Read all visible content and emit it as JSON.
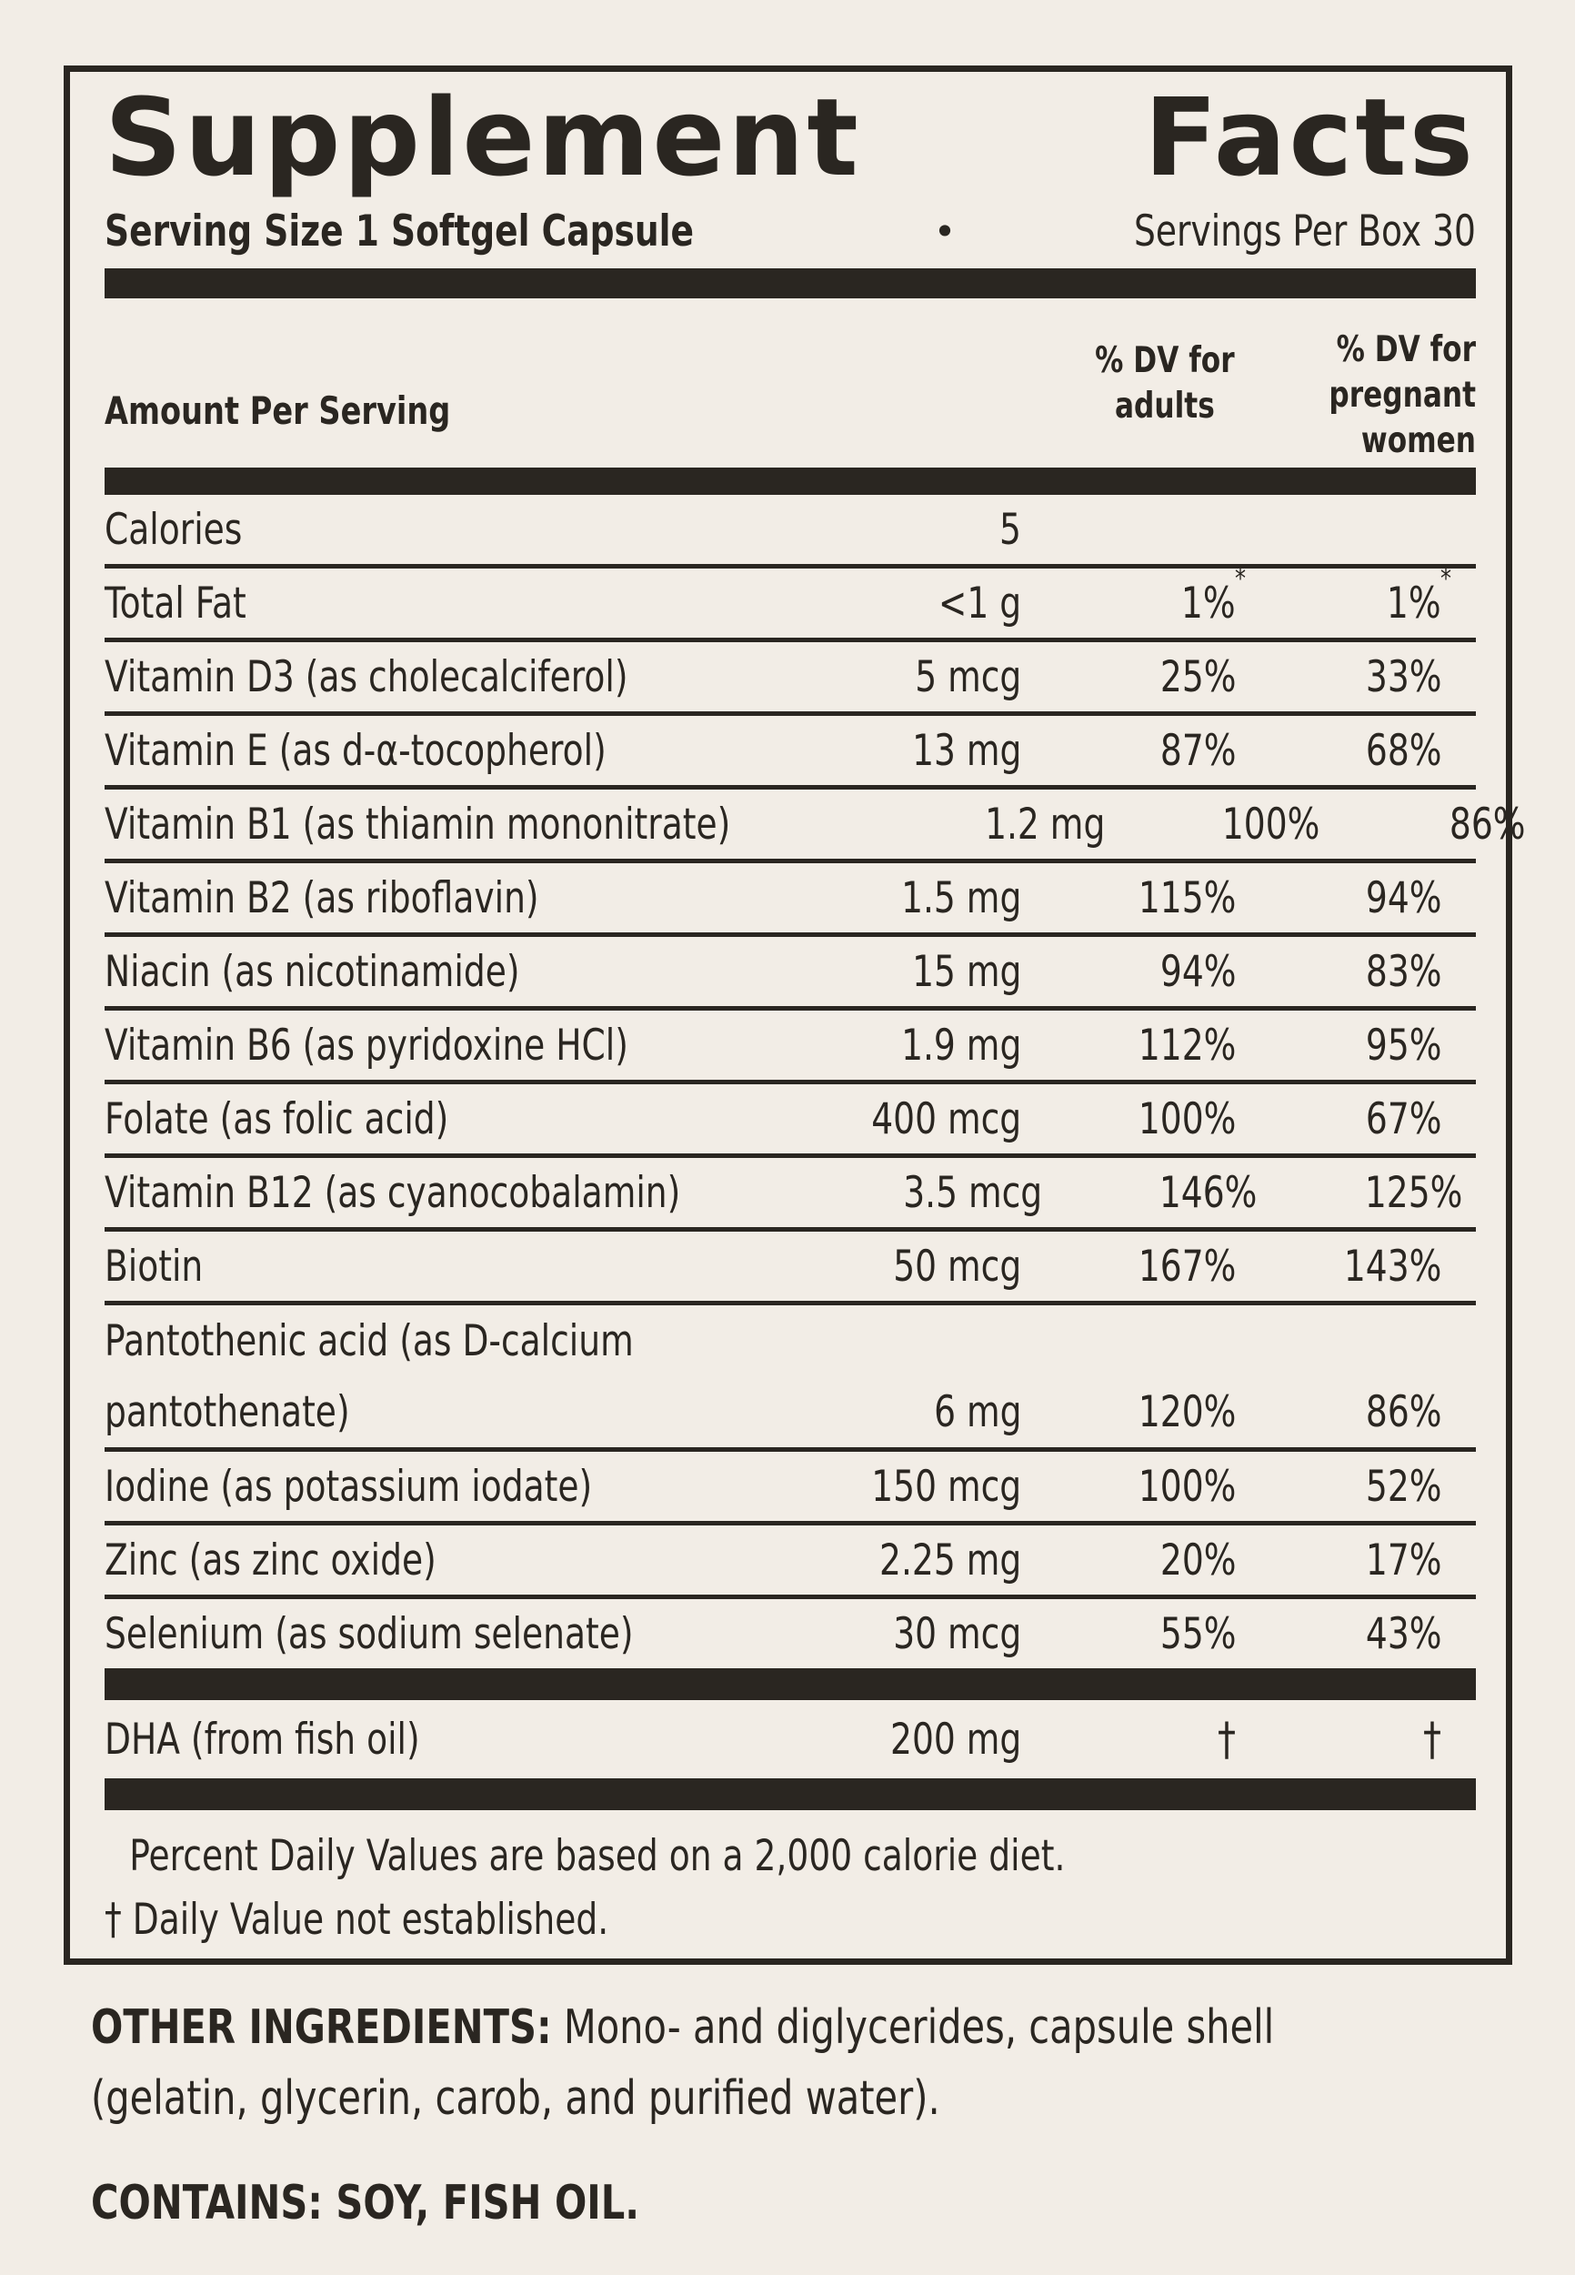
{
  "colors": {
    "background": "#f2ede6",
    "ink": "#2a2621"
  },
  "panel": {
    "title": "Supplement Facts",
    "serving_size": "Serving Size 1 Softgel Capsule",
    "bullet": "•",
    "servings_per_box": "Servings Per Box 30",
    "columns": {
      "amount": "Amount Per Serving",
      "dv_adults": [
        "% DV for",
        "adults"
      ],
      "dv_pregnant": [
        "% DV for",
        "pregnant",
        "women"
      ]
    },
    "rows": [
      {
        "name": "Calories",
        "amount": "5",
        "dv_adults": "",
        "dv_pregnant": ""
      },
      {
        "name": "Total Fat",
        "amount": "<1 g",
        "dv_adults": "1%",
        "dv_pregnant": "1%",
        "dv_mark": "*"
      },
      {
        "name": "Vitamin D3 (as cholecalciferol)",
        "amount": "5 mcg",
        "dv_adults": "25%",
        "dv_pregnant": "33%"
      },
      {
        "name": "Vitamin E (as d-α-tocopherol)",
        "amount": "13 mg",
        "dv_adults": "87%",
        "dv_pregnant": "68%"
      },
      {
        "name": "Vitamin B1 (as thiamin mononitrate)",
        "amount": "1.2 mg",
        "dv_adults": "100%",
        "dv_pregnant": "86%"
      },
      {
        "name": "Vitamin B2 (as riboflavin)",
        "amount": "1.5 mg",
        "dv_adults": "115%",
        "dv_pregnant": "94%"
      },
      {
        "name": "Niacin (as nicotinamide)",
        "amount": "15 mg",
        "dv_adults": "94%",
        "dv_pregnant": "83%"
      },
      {
        "name": "Vitamin B6 (as pyridoxine HCl)",
        "amount": "1.9 mg",
        "dv_adults": "112%",
        "dv_pregnant": "95%"
      },
      {
        "name": "Folate (as folic acid)",
        "amount": "400 mcg",
        "dv_adults": "100%",
        "dv_pregnant": "67%"
      },
      {
        "name": "Vitamin B12 (as cyanocobalamin)",
        "amount": "3.5 mcg",
        "dv_adults": "146%",
        "dv_pregnant": "125%"
      },
      {
        "name": "Biotin",
        "amount": "50 mcg",
        "dv_adults": "167%",
        "dv_pregnant": "143%"
      },
      {
        "name_line1": "Pantothenic acid (as D-calcium",
        "name_line2": "pantothenate)",
        "amount": "6 mg",
        "dv_adults": "120%",
        "dv_pregnant": "86%"
      },
      {
        "name": "Iodine (as potassium iodate)",
        "amount": "150 mcg",
        "dv_adults": "100%",
        "dv_pregnant": "52%"
      },
      {
        "name": "Zinc (as zinc oxide)",
        "amount": "2.25 mg",
        "dv_adults": "20%",
        "dv_pregnant": "17%"
      },
      {
        "name": "Selenium (as sodium selenate)",
        "amount": "30 mcg",
        "dv_adults": "55%",
        "dv_pregnant": "43%"
      }
    ],
    "dha": {
      "name": "DHA (from fish oil)",
      "amount": "200 mg",
      "dv_adults": "†",
      "dv_pregnant": "†"
    },
    "footnotes": [
      "Percent Daily Values are based on a 2,000 calorie diet.",
      "† Daily Value not established."
    ]
  },
  "beneath": {
    "other_ingredients_label": "OTHER INGREDIENTS:",
    "other_ingredients_text": " Mono- and diglycerides, capsule shell (gelatin, glycerin, carob, and purified water).",
    "contains": "CONTAINS: SOY, FISH OIL."
  }
}
